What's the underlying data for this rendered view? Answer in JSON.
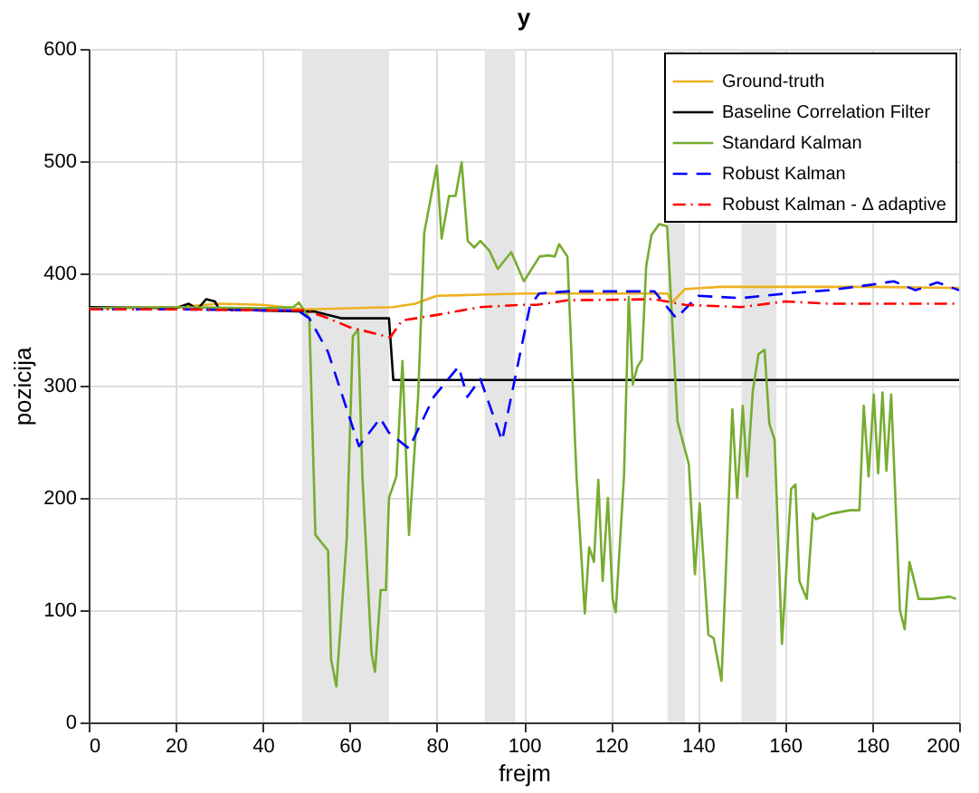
{
  "chart_data": {
    "type": "line",
    "title": "y",
    "xlabel": "frejm",
    "ylabel": "pozicija",
    "xlim": [
      0,
      200
    ],
    "xticks": [
      0,
      20,
      40,
      60,
      80,
      100,
      120,
      140,
      160,
      180,
      200
    ],
    "ylim": [
      0,
      600
    ],
    "yticks": [
      0,
      100,
      200,
      300,
      400,
      500,
      600
    ],
    "grid": true,
    "legend": "top right",
    "marker": "none",
    "bands": [
      {
        "axis": "x",
        "from": 49,
        "to": 69,
        "color": "#e5e5e5"
      },
      {
        "axis": "x",
        "from": 91,
        "to": 98,
        "color": "#e5e5e5"
      },
      {
        "axis": "x",
        "from": 133,
        "to": 137,
        "color": "#e5e5e5"
      },
      {
        "axis": "x",
        "from": 150,
        "to": 158,
        "color": "#e5e5e5"
      }
    ],
    "series": [
      {
        "name": "Ground-truth",
        "color": "#edb120",
        "line_style": "solid",
        "x": [
          0,
          20,
          30,
          40,
          50,
          60,
          70,
          75,
          80,
          90,
          100,
          110,
          120,
          133,
          134,
          137,
          145,
          160,
          180,
          200
        ],
        "values": [
          369,
          370,
          373,
          372,
          368,
          369,
          370,
          373,
          380,
          381,
          382,
          382,
          382,
          382,
          374,
          386,
          388,
          388,
          388,
          387
        ]
      },
      {
        "name": "Baseline Correlation Filter",
        "color": "#000000",
        "line_style": "solid",
        "x": [
          0,
          20,
          23,
          25,
          27,
          29,
          30,
          40,
          50,
          52,
          58,
          69,
          70,
          80,
          100,
          150,
          200
        ],
        "values": [
          370,
          369,
          373,
          368,
          377,
          375,
          368,
          367,
          366,
          366,
          360,
          360,
          305,
          305,
          305,
          305,
          305
        ]
      },
      {
        "name": "Standard Kalman",
        "color": "#77ac30",
        "line_style": "solid",
        "x": [
          0,
          20,
          40,
          47,
          48.3,
          50.7,
          52.1,
          55,
          55.7,
          56.9,
          59.3,
          60.7,
          61.9,
          62.9,
          65,
          65.8,
          67.1,
          68.3,
          69,
          70.7,
          72.1,
          73.6,
          75.7,
          77.1,
          80,
          81.1,
          82.8,
          84.3,
          85.7,
          87.1,
          88.6,
          90,
          92.1,
          94,
          97.1,
          100,
          103.6,
          105.7,
          107.1,
          108.1,
          110,
          112.1,
          114,
          115,
          116.1,
          117.1,
          118.1,
          119.3,
          120.4,
          121.1,
          123,
          124.1,
          125,
          126.1,
          127.1,
          128.1,
          129.3,
          131.1,
          132.9,
          135.3,
          137.9,
          139.3,
          140.4,
          142.4,
          143.6,
          145.4,
          147.9,
          149,
          150.3,
          151.3,
          152.6,
          153.9,
          155.3,
          156.4,
          157.6,
          159.3,
          161.4,
          162.4,
          163.3,
          165,
          166.4,
          167.1,
          170.7,
          175,
          177.1,
          178.1,
          179.2,
          180.4,
          181.4,
          182.4,
          183.3,
          184.4,
          186.4,
          187.5,
          188.6,
          190.7,
          193.6,
          197.9,
          199.3
        ],
        "values": [
          369,
          370,
          369,
          370,
          374,
          360,
          167,
          153,
          56,
          32,
          164,
          344,
          350,
          219,
          61,
          45,
          118,
          118,
          200,
          219,
          322,
          167,
          290,
          436,
          496,
          431,
          469,
          469,
          499,
          429,
          423,
          429,
          420,
          404,
          419,
          393,
          415,
          416,
          415,
          426,
          415,
          219,
          97,
          156,
          143,
          216,
          126,
          200,
          110,
          98,
          219,
          379,
          301,
          317,
          323,
          406,
          434,
          444,
          442,
          268,
          230,
          132,
          195,
          78,
          75,
          37,
          279,
          200,
          282,
          219,
          295,
          328,
          332,
          266,
          252,
          70,
          208,
          212,
          126,
          110,
          186,
          181,
          186,
          189,
          189,
          282,
          219,
          292,
          222,
          294,
          224,
          292,
          100,
          83,
          143,
          110,
          110,
          112,
          110
        ]
      },
      {
        "name": "Robust Kalman",
        "color": "#0000ff",
        "line_style": "dashed",
        "x": [
          0,
          20,
          40,
          48,
          50.7,
          55,
          62.1,
          67,
          69,
          73.6,
          79.3,
          85,
          87,
          90,
          95,
          101.4,
          103.5,
          110,
          120,
          130,
          135,
          140,
          150,
          160,
          170,
          180,
          185,
          190,
          195,
          200
        ],
        "values": [
          368,
          368,
          367,
          367,
          360,
          330,
          246,
          271,
          258,
          244,
          290,
          317,
          290,
          306,
          251,
          371,
          382,
          384,
          384,
          384,
          360,
          380,
          378,
          382,
          385,
          390,
          393,
          385,
          392,
          385
        ]
      },
      {
        "name": "Robust Kalman - Δ adaptive",
        "color": "#ff0000",
        "line_style": "dashdot",
        "x": [
          0,
          20,
          40,
          50,
          55,
          60,
          69.3,
          72,
          80,
          90,
          100,
          103,
          110,
          130,
          137,
          150,
          160,
          170,
          200
        ],
        "values": [
          368,
          368,
          367,
          367,
          360,
          352,
          343,
          358,
          363,
          370,
          372,
          372,
          376,
          377,
          372,
          370,
          375,
          373,
          373
        ]
      }
    ]
  }
}
